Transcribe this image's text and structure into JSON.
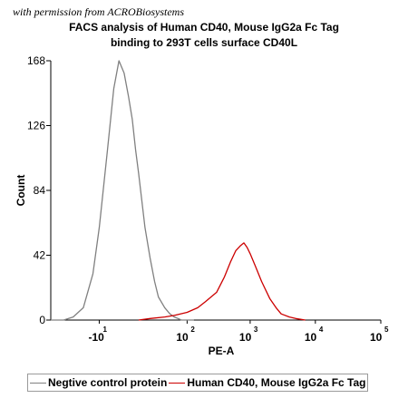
{
  "watermark": "with permission from ACROBiosystems",
  "chart_data": {
    "type": "line",
    "title_line1": "FACS analysis of Human CD40, Mouse IgG2a Fc Tag",
    "title_line2": "binding to 293T cells surface CD40L",
    "xlabel": "PE-A",
    "ylabel": "Count",
    "ylim": [
      0,
      168
    ],
    "yticks": [
      0,
      42,
      84,
      126,
      168
    ],
    "xscale": "biexponential",
    "xticks": [
      {
        "base": "-10",
        "exp": "1",
        "v": -10
      },
      {
        "base": "10",
        "exp": "2",
        "v": 100
      },
      {
        "base": "10",
        "exp": "3",
        "v": 1000
      },
      {
        "base": "10",
        "exp": "4",
        "v": 10000
      },
      {
        "base": "10",
        "exp": "5",
        "v": 100000
      }
    ],
    "series": [
      {
        "name": "Negtive control protein",
        "color": "#808080",
        "x": [
          -100,
          -60,
          -40,
          -25,
          -15,
          -10,
          -5,
          -2,
          0,
          2,
          4,
          6,
          8,
          10,
          12,
          15,
          20,
          25,
          30,
          40,
          50,
          60,
          70,
          80,
          100,
          130
        ],
        "y": [
          0,
          0,
          2,
          8,
          30,
          60,
          110,
          150,
          168,
          160,
          145,
          130,
          110,
          95,
          80,
          60,
          40,
          25,
          15,
          8,
          4,
          2,
          1,
          0,
          0,
          0
        ]
      },
      {
        "name": "Human CD40, Mouse IgG2a Fc Tag",
        "color": "#cc0000",
        "x": [
          10,
          20,
          40,
          60,
          100,
          150,
          200,
          300,
          400,
          500,
          600,
          700,
          800,
          900,
          1000,
          1200,
          1500,
          2000,
          2500,
          3000,
          4000,
          5000,
          7000
        ],
        "y": [
          0,
          1,
          2,
          3,
          5,
          8,
          12,
          18,
          28,
          38,
          45,
          48,
          50,
          47,
          43,
          35,
          25,
          14,
          8,
          4,
          2,
          1,
          0
        ]
      }
    ],
    "legend_position": "bottom"
  }
}
